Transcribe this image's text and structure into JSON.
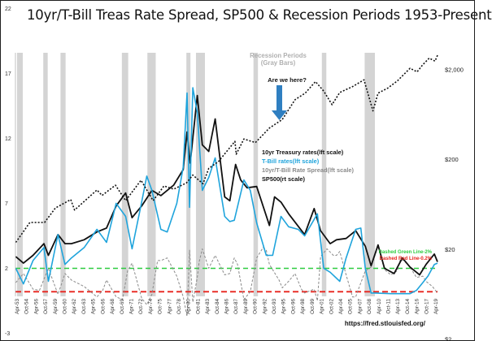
{
  "chart_data": {
    "type": "line",
    "title": "10yr/T-Bill Treas Rate Spread, SP500 & Recession Periods 1953-Present",
    "left_axis": {
      "ticks": [
        -3,
        2,
        7,
        12,
        17,
        22
      ],
      "ylim": [
        -3,
        22
      ]
    },
    "right_axis": {
      "scale": "log",
      "ticks": [
        "$2",
        "$20",
        "$200",
        "$2,000"
      ],
      "ylim": [
        2,
        3000
      ]
    },
    "x_ticks": [
      "Apr-53",
      "Oct-54",
      "Apr-56",
      "Oct-57",
      "Apr-59",
      "Oct-60",
      "Apr-62",
      "Oct-63",
      "Apr-65",
      "Oct-66",
      "Apr-68",
      "Oct-69",
      "Apr-71",
      "Oct-72",
      "Apr-74",
      "Oct-75",
      "Apr-77",
      "Oct-78",
      "Apr-80",
      "Oct-81",
      "Apr-83",
      "Oct-84",
      "Apr-86",
      "Oct-87",
      "Apr-89",
      "Oct-90",
      "Apr-92",
      "Oct-93",
      "Apr-95",
      "Oct-96",
      "Apr-98",
      "Oct-99",
      "Apr-01",
      "Oct-02",
      "Apr-04",
      "Oct-05",
      "Apr-07",
      "Oct-08",
      "Apr-10",
      "Oct-11",
      "Apr-13",
      "Oct-14",
      "Apr-16",
      "Oct-17",
      "Apr-19"
    ],
    "recessions": [
      [
        1953.5,
        1954.4
      ],
      [
        1957.6,
        1958.3
      ],
      [
        1960.3,
        1961.1
      ],
      [
        1969.9,
        1970.9
      ],
      [
        1973.9,
        1975.2
      ],
      [
        1980.0,
        1980.5
      ],
      [
        1981.5,
        1982.9
      ],
      [
        1990.5,
        1991.2
      ],
      [
        2001.2,
        2001.9
      ],
      [
        2007.9,
        2009.5
      ]
    ],
    "series": [
      {
        "name": "10yr Treasury rates(lft scale)",
        "color": "#111111",
        "style": "solid",
        "x": [
          1953.3,
          1954.5,
          1956,
          1957.7,
          1958.4,
          1959.9,
          1961,
          1962,
          1964,
          1966,
          1967.5,
          1969,
          1970.5,
          1971.5,
          1973,
          1974.6,
          1976,
          1978,
          1979.5,
          1980.1,
          1980.6,
          1981.7,
          1982.5,
          1983.5,
          1984.5,
          1986,
          1986.8,
          1987.7,
          1988.5,
          1989.5,
          1991,
          1993,
          1993.8,
          1994.8,
          1996,
          1998.5,
          2000,
          2001,
          2002.5,
          2003.5,
          2005,
          2006.5,
          2008,
          2008.9,
          2010,
          2011,
          2012.5,
          2013.8,
          2015,
          2016.5,
          2017.5,
          2018.8,
          2019.3
        ],
        "y": [
          2.9,
          2.4,
          3.0,
          3.9,
          3.0,
          4.6,
          3.9,
          3.9,
          4.2,
          4.8,
          5.1,
          6.8,
          7.8,
          5.9,
          6.8,
          8.0,
          7.6,
          8.4,
          9.6,
          12.5,
          10.1,
          15.3,
          11.5,
          11.0,
          13.5,
          7.5,
          7.2,
          10.0,
          8.8,
          8.2,
          8.3,
          5.3,
          7.5,
          7.1,
          6.2,
          4.6,
          6.6,
          4.9,
          3.9,
          4.2,
          4.3,
          4.9,
          3.7,
          2.2,
          3.8,
          2.0,
          1.6,
          2.8,
          2.1,
          1.5,
          2.3,
          3.1,
          2.5
        ]
      },
      {
        "name": "T-Bill rates(lft scale)",
        "color": "#1fa4dc",
        "style": "solid",
        "x": [
          1953.3,
          1954.5,
          1956,
          1957.7,
          1958.4,
          1959.9,
          1961,
          1962,
          1964,
          1966,
          1967.5,
          1969,
          1970.5,
          1971.5,
          1973,
          1973.8,
          1974.6,
          1976,
          1977,
          1978.5,
          1979.5,
          1980.1,
          1980.5,
          1981,
          1981.7,
          1982.5,
          1983.5,
          1984.5,
          1986,
          1986.8,
          1987.5,
          1989,
          1990,
          1991,
          1992.5,
          1993.5,
          1994.8,
          1996,
          1997.5,
          1998.5,
          2000.5,
          2001.5,
          2002.5,
          2004,
          2005,
          2006.5,
          2007.3,
          2008,
          2008.9,
          2009.5,
          2012,
          2015,
          2016,
          2017,
          2017.8,
          2018.8,
          2019.3
        ],
        "y": [
          2.0,
          0.8,
          2.6,
          3.6,
          1.0,
          4.6,
          2.3,
          2.8,
          3.6,
          5.0,
          4.0,
          7.0,
          6.0,
          3.5,
          7.1,
          9.1,
          8.0,
          5.0,
          4.8,
          7.0,
          9.8,
          15.5,
          6.7,
          15.9,
          14.0,
          8.0,
          9.0,
          10.5,
          6.0,
          5.6,
          5.7,
          8.8,
          8.0,
          5.5,
          3.0,
          3.0,
          6.0,
          5.2,
          5.0,
          4.5,
          6.2,
          2.0,
          1.7,
          1.0,
          2.8,
          5.0,
          5.1,
          2.0,
          0.1,
          0.1,
          0.05,
          0.05,
          0.3,
          0.9,
          1.4,
          2.3,
          2.4
        ]
      },
      {
        "name": "10yr/T-Bill Rate Spread(lft scale)",
        "color": "#8a8a8a",
        "style": "dashed",
        "x": [
          1953.3,
          1954.5,
          1956,
          1957,
          1958.4,
          1959.9,
          1961,
          1962,
          1964,
          1966,
          1966.9,
          1967.5,
          1969,
          1970,
          1970.8,
          1971.5,
          1973,
          1973.8,
          1974.6,
          1975.5,
          1976,
          1977,
          1978.5,
          1979.5,
          1980.1,
          1980.5,
          1981,
          1981.7,
          1982,
          1982.5,
          1983.5,
          1984.5,
          1986,
          1986.8,
          1987.5,
          1988,
          1989,
          1990,
          1991,
          1992,
          1992.5,
          1993,
          1994.5,
          1995,
          1996,
          1997,
          1998,
          1998.5,
          2000,
          2000.5,
          2001,
          2002,
          2003,
          2003.5,
          2004,
          2005,
          2006,
          2006.5,
          2007,
          2008,
          2008.9,
          2010,
          2011,
          2012,
          2013,
          2013.5,
          2014,
          2015,
          2016,
          2017,
          2017.5,
          2018.5,
          2019.3
        ],
        "y": [
          0.9,
          1.6,
          0.4,
          0.3,
          2.0,
          0.0,
          1.6,
          1.1,
          0.6,
          -0.2,
          0.3,
          1.1,
          -0.2,
          -0.4,
          1.8,
          2.4,
          -0.3,
          -0.8,
          0.0,
          2.6,
          2.6,
          2.8,
          1.4,
          -0.2,
          -1.7,
          3.4,
          -0.6,
          1.3,
          2.5,
          3.5,
          2.0,
          3.0,
          1.5,
          1.6,
          2.8,
          2.3,
          -0.4,
          0.2,
          2.8,
          3.6,
          3.4,
          2.3,
          1.1,
          0.5,
          1.0,
          1.6,
          0.4,
          0.1,
          0.4,
          -0.5,
          2.9,
          3.5,
          3.0,
          3.0,
          3.3,
          1.5,
          -0.2,
          -0.2,
          0.5,
          1.8,
          2.1,
          3.7,
          1.9,
          1.5,
          1.8,
          2.7,
          2.6,
          2.1,
          1.3,
          1.4,
          1.0,
          0.6,
          0.1
        ]
      },
      {
        "name": "SP500(rt scale)",
        "color": "#111111",
        "style": "dotted",
        "scale": "log",
        "x": [
          1953.3,
          1955.5,
          1957.8,
          1959.5,
          1961.9,
          1962.5,
          1966,
          1966.8,
          1968.9,
          1970.5,
          1972.9,
          1974.8,
          1976.5,
          1978,
          1980,
          1981,
          1982.6,
          1983.5,
          1985,
          1987.6,
          1987.8,
          1989,
          1990.8,
          1993,
          1995,
          1997,
          1998.6,
          2000.2,
          2001.5,
          2002.8,
          2004,
          2006,
          2007.8,
          2009.2,
          2010,
          2011.5,
          2013,
          2015,
          2016.1,
          2017,
          2018,
          2018.9,
          2019.3
        ],
        "y": [
          24,
          40,
          40,
          58,
          72,
          55,
          92,
          80,
          104,
          70,
          118,
          70,
          102,
          94,
          110,
          135,
          108,
          160,
          190,
          320,
          230,
          340,
          310,
          450,
          560,
          930,
          1100,
          1480,
          1160,
          820,
          1120,
          1300,
          1550,
          700,
          1100,
          1250,
          1500,
          2080,
          1900,
          2280,
          2700,
          2500,
          2900
        ]
      }
    ],
    "annotations": {
      "recession_label_line1": "Recession Periods",
      "recession_label_line2": "(Gray Bars)",
      "arrow_label": "Are we here?",
      "green_line_label": "Dashed Green Line-2%",
      "red_line_label": "Dashed Red Line-0.2%",
      "green_line_value": 2,
      "red_line_value": 0.2,
      "source": "https://fred.stlouisfed.org/"
    },
    "colors": {
      "green": "#2ecc40",
      "red": "#e8231c",
      "recession_fill": "#d4d4d4",
      "arrow": "#2f7fc1"
    }
  }
}
